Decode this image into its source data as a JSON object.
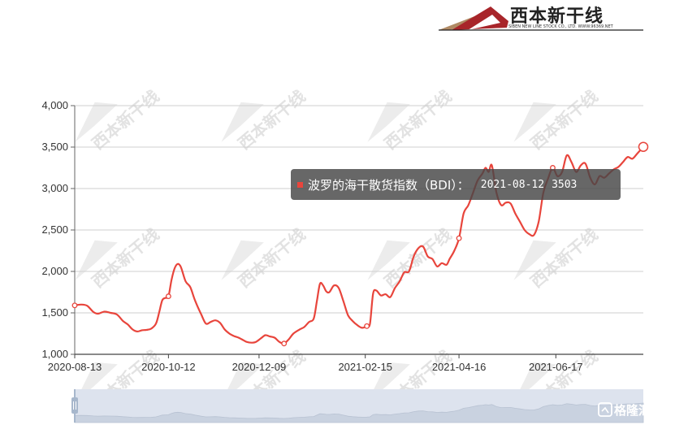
{
  "logo": {
    "name": "西本新干线",
    "subtitle": "SIBEN NEW LINE STOCK CO., LTD.   WWW.96369.NET"
  },
  "watermark": {
    "text": "西本新干线"
  },
  "tooltip": {
    "series_name": "波罗的海干散货指数（BDI）：",
    "date": "2021-08-12",
    "value": "3503"
  },
  "brand": {
    "text": "格隆汇"
  },
  "colors": {
    "line": "#e8453c",
    "slider_bg": "#dde3ee",
    "slider_handle": "#a7b7cc"
  },
  "chart_data": {
    "type": "line",
    "title": "",
    "xlabel": "",
    "ylabel": "",
    "ylim": [
      1000,
      4000
    ],
    "yticks": [
      "1,000",
      "1,500",
      "2,000",
      "2,500",
      "3,000",
      "3,500",
      "4,000"
    ],
    "x_tick_labels": [
      "2020-08-13",
      "2020-10-12",
      "2020-12-09",
      "2021-02-15",
      "2021-04-16",
      "2021-06-17"
    ],
    "x_range": [
      "2020-08-13",
      "2021-08-12"
    ],
    "grid": true,
    "series": [
      {
        "values": [
          [
            "2020-08-13",
            1590
          ],
          [
            "2020-08-17",
            1600
          ],
          [
            "2020-08-21",
            1585
          ],
          [
            "2020-08-25",
            1510
          ],
          [
            "2020-08-28",
            1490
          ],
          [
            "2020-09-01",
            1515
          ],
          [
            "2020-09-05",
            1500
          ],
          [
            "2020-09-09",
            1480
          ],
          [
            "2020-09-13",
            1400
          ],
          [
            "2020-09-16",
            1360
          ],
          [
            "2020-09-19",
            1300
          ],
          [
            "2020-09-22",
            1275
          ],
          [
            "2020-09-25",
            1290
          ],
          [
            "2020-09-28",
            1295
          ],
          [
            "2020-10-01",
            1310
          ],
          [
            "2020-10-04",
            1370
          ],
          [
            "2020-10-06",
            1500
          ],
          [
            "2020-10-08",
            1650
          ],
          [
            "2020-10-10",
            1680
          ],
          [
            "2020-10-12",
            1700
          ],
          [
            "2020-10-14",
            1900
          ],
          [
            "2020-10-16",
            2040
          ],
          [
            "2020-10-18",
            2090
          ],
          [
            "2020-10-20",
            2050
          ],
          [
            "2020-10-23",
            1880
          ],
          [
            "2020-10-26",
            1810
          ],
          [
            "2020-10-29",
            1650
          ],
          [
            "2020-11-02",
            1480
          ],
          [
            "2020-11-05",
            1370
          ],
          [
            "2020-11-08",
            1390
          ],
          [
            "2020-11-11",
            1410
          ],
          [
            "2020-11-14",
            1380
          ],
          [
            "2020-11-17",
            1300
          ],
          [
            "2020-11-20",
            1250
          ],
          [
            "2020-11-23",
            1220
          ],
          [
            "2020-11-26",
            1200
          ],
          [
            "2020-11-29",
            1170
          ],
          [
            "2020-12-01",
            1150
          ],
          [
            "2020-12-04",
            1140
          ],
          [
            "2020-12-07",
            1150
          ],
          [
            "2020-12-10",
            1190
          ],
          [
            "2020-12-13",
            1230
          ],
          [
            "2020-12-16",
            1215
          ],
          [
            "2020-12-19",
            1200
          ],
          [
            "2020-12-22",
            1150
          ],
          [
            "2020-12-25",
            1130
          ],
          [
            "2020-12-28",
            1180
          ],
          [
            "2020-12-31",
            1250
          ],
          [
            "2021-01-04",
            1300
          ],
          [
            "2021-01-07",
            1330
          ],
          [
            "2021-01-10",
            1390
          ],
          [
            "2021-01-13",
            1430
          ],
          [
            "2021-01-15",
            1640
          ],
          [
            "2021-01-17",
            1850
          ],
          [
            "2021-01-19",
            1830
          ],
          [
            "2021-01-21",
            1760
          ],
          [
            "2021-01-23",
            1750
          ],
          [
            "2021-01-26",
            1830
          ],
          [
            "2021-01-29",
            1800
          ],
          [
            "2021-02-01",
            1640
          ],
          [
            "2021-02-04",
            1470
          ],
          [
            "2021-02-07",
            1400
          ],
          [
            "2021-02-10",
            1350
          ],
          [
            "2021-02-13",
            1320
          ],
          [
            "2021-02-16",
            1340
          ],
          [
            "2021-02-18",
            1370
          ],
          [
            "2021-02-20",
            1730
          ],
          [
            "2021-02-22",
            1770
          ],
          [
            "2021-02-25",
            1710
          ],
          [
            "2021-02-28",
            1725
          ],
          [
            "2021-03-03",
            1690
          ],
          [
            "2021-03-06",
            1800
          ],
          [
            "2021-03-09",
            1880
          ],
          [
            "2021-03-12",
            1990
          ],
          [
            "2021-03-15",
            2000
          ],
          [
            "2021-03-18",
            2180
          ],
          [
            "2021-03-21",
            2280
          ],
          [
            "2021-03-24",
            2300
          ],
          [
            "2021-03-27",
            2180
          ],
          [
            "2021-03-30",
            2150
          ],
          [
            "2021-04-02",
            2060
          ],
          [
            "2021-04-05",
            2100
          ],
          [
            "2021-04-08",
            2080
          ],
          [
            "2021-04-10",
            2150
          ],
          [
            "2021-04-13",
            2250
          ],
          [
            "2021-04-16",
            2400
          ],
          [
            "2021-04-19",
            2700
          ],
          [
            "2021-04-22",
            2800
          ],
          [
            "2021-04-25",
            2950
          ],
          [
            "2021-04-28",
            3100
          ],
          [
            "2021-05-01",
            3180
          ],
          [
            "2021-05-03",
            3250
          ],
          [
            "2021-05-05",
            3200
          ],
          [
            "2021-05-07",
            3280
          ],
          [
            "2021-05-10",
            2950
          ],
          [
            "2021-05-13",
            2800
          ],
          [
            "2021-05-16",
            2830
          ],
          [
            "2021-05-19",
            2820
          ],
          [
            "2021-05-22",
            2700
          ],
          [
            "2021-05-25",
            2600
          ],
          [
            "2021-05-28",
            2500
          ],
          [
            "2021-05-31",
            2450
          ],
          [
            "2021-06-03",
            2440
          ],
          [
            "2021-06-06",
            2600
          ],
          [
            "2021-06-09",
            2950
          ],
          [
            "2021-06-12",
            3120
          ],
          [
            "2021-06-15",
            3250
          ],
          [
            "2021-06-18",
            3150
          ],
          [
            "2021-06-21",
            3200
          ],
          [
            "2021-06-24",
            3400
          ],
          [
            "2021-06-27",
            3320
          ],
          [
            "2021-06-30",
            3200
          ],
          [
            "2021-07-03",
            3280
          ],
          [
            "2021-07-06",
            3300
          ],
          [
            "2021-07-09",
            3130
          ],
          [
            "2021-07-12",
            3050
          ],
          [
            "2021-07-15",
            3150
          ],
          [
            "2021-07-18",
            3130
          ],
          [
            "2021-07-21",
            3180
          ],
          [
            "2021-07-24",
            3230
          ],
          [
            "2021-07-27",
            3260
          ],
          [
            "2021-07-30",
            3320
          ],
          [
            "2021-08-02",
            3380
          ],
          [
            "2021-08-05",
            3360
          ],
          [
            "2021-08-08",
            3420
          ],
          [
            "2021-08-12",
            3503
          ]
        ],
        "highlighted_points": [
          "2020-08-13",
          "2020-10-12",
          "2020-12-25",
          "2021-02-16",
          "2021-04-16",
          "2021-06-15",
          "2021-08-12"
        ]
      }
    ]
  }
}
